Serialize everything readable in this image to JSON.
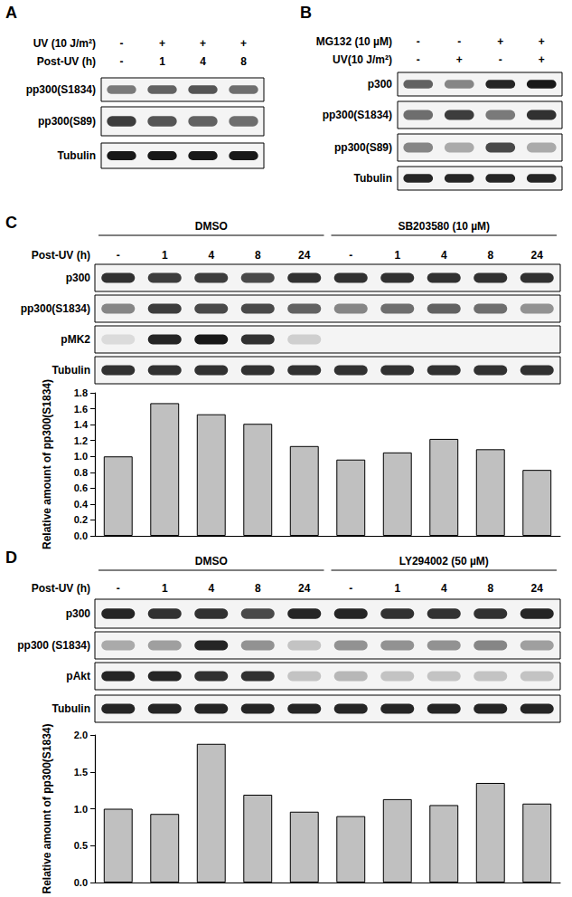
{
  "panels": [
    {
      "label": "A",
      "conditions": [
        {
          "name": "UV (10 J/m²)",
          "values": [
            "-",
            "+",
            "+",
            "+"
          ]
        },
        {
          "name": "Post-UV (h)",
          "values": [
            "-",
            "1",
            "4",
            "8"
          ]
        }
      ],
      "blots": [
        {
          "name": "pp300(S1834)",
          "intensity": [
            0.5,
            0.6,
            0.65,
            0.55
          ]
        },
        {
          "name": "pp300(S89)",
          "intensity": [
            0.75,
            0.65,
            0.6,
            0.55
          ]
        },
        {
          "name": "Tubulin",
          "intensity": [
            0.9,
            0.9,
            0.9,
            0.9
          ]
        }
      ]
    },
    {
      "label": "B",
      "conditions": [
        {
          "name": "MG132 (10 µM)",
          "values": [
            "-",
            "-",
            "+",
            "+"
          ]
        },
        {
          "name": "UV(10 J/m²)",
          "values": [
            "-",
            "+",
            "-",
            "+"
          ]
        }
      ],
      "blots": [
        {
          "name": "p300",
          "intensity": [
            0.6,
            0.45,
            0.85,
            0.9
          ]
        },
        {
          "name": "pp300(S1834)",
          "intensity": [
            0.55,
            0.75,
            0.5,
            0.8
          ]
        },
        {
          "name": "pp300(S89)",
          "intensity": [
            0.45,
            0.3,
            0.7,
            0.3
          ]
        },
        {
          "name": "Tubulin",
          "intensity": [
            0.85,
            0.85,
            0.85,
            0.85
          ]
        }
      ]
    },
    {
      "label": "C",
      "groups": [
        {
          "name": "DMSO",
          "lanes": 5
        },
        {
          "name": "SB203580 (10 µM)",
          "lanes": 5
        }
      ],
      "conditions": [
        {
          "name": "Post-UV (h)",
          "values": [
            "-",
            "1",
            "4",
            "8",
            "24",
            "-",
            "1",
            "4",
            "8",
            "24"
          ]
        }
      ],
      "blots": [
        {
          "name": "p300",
          "intensity": [
            0.8,
            0.75,
            0.75,
            0.7,
            0.8,
            0.8,
            0.8,
            0.8,
            0.8,
            0.8
          ]
        },
        {
          "name": "pp300(S1834)",
          "intensity": [
            0.45,
            0.75,
            0.7,
            0.7,
            0.6,
            0.45,
            0.55,
            0.6,
            0.55,
            0.4
          ]
        },
        {
          "name": "pMK2",
          "intensity": [
            0.1,
            0.85,
            0.9,
            0.8,
            0.15,
            0,
            0,
            0,
            0,
            0
          ]
        },
        {
          "name": "Tubulin",
          "intensity": [
            0.8,
            0.8,
            0.8,
            0.8,
            0.8,
            0.8,
            0.8,
            0.8,
            0.8,
            0.8
          ]
        }
      ]
    },
    {
      "label": "D",
      "groups": [
        {
          "name": "DMSO",
          "lanes": 5
        },
        {
          "name": "LY294002 (50 µM)",
          "lanes": 5
        }
      ],
      "conditions": [
        {
          "name": "Post-UV (h)",
          "values": [
            "-",
            "1",
            "4",
            "8",
            "24",
            "-",
            "1",
            "4",
            "8",
            "24"
          ]
        }
      ],
      "blots": [
        {
          "name": "p300",
          "intensity": [
            0.85,
            0.8,
            0.8,
            0.7,
            0.85,
            0.85,
            0.8,
            0.8,
            0.8,
            0.85
          ]
        },
        {
          "name": "pp300 (S1834)",
          "intensity": [
            0.3,
            0.35,
            0.85,
            0.4,
            0.2,
            0.4,
            0.4,
            0.4,
            0.45,
            0.35
          ]
        },
        {
          "name": "pAkt",
          "intensity": [
            0.85,
            0.85,
            0.8,
            0.8,
            0.2,
            0.25,
            0.2,
            0.2,
            0.2,
            0.2
          ]
        },
        {
          "name": "Tubulin",
          "intensity": [
            0.85,
            0.85,
            0.85,
            0.85,
            0.85,
            0.85,
            0.85,
            0.85,
            0.85,
            0.85
          ]
        }
      ]
    }
  ],
  "chart_data": [
    {
      "type": "bar",
      "y_label": "Relative amount of pp300(S1834)",
      "categories": [
        null,
        null,
        null,
        null,
        null,
        null,
        null,
        null,
        null,
        null
      ],
      "values": [
        1.0,
        1.67,
        1.53,
        1.41,
        1.13,
        0.96,
        1.05,
        1.22,
        1.09,
        0.83
      ],
      "color": "#c0c0c0",
      "ylim": [
        0,
        1.8
      ],
      "yticks": [
        {
          "value": 0,
          "label": "0.0"
        },
        {
          "value": 0.2,
          "label": "0.2"
        },
        {
          "value": 0.4,
          "label": "0.4"
        },
        {
          "value": 0.6,
          "label": "0.6"
        },
        {
          "value": 0.8,
          "label": "0.8"
        },
        {
          "value": 1.0,
          "label": "1.0"
        },
        {
          "value": 1.2,
          "label": "1.2"
        },
        {
          "value": 1.4,
          "label": "1.4"
        },
        {
          "value": 1.6,
          "label": "1.6"
        },
        {
          "value": 1.8,
          "label": "1.8"
        }
      ],
      "grid": false,
      "tick_labels": "y"
    },
    {
      "type": "bar",
      "y_label": "Relative amount of pp300(S1834)",
      "categories": [
        null,
        null,
        null,
        null,
        null,
        null,
        null,
        null,
        null,
        null
      ],
      "values": [
        1.0,
        0.93,
        1.88,
        1.19,
        0.96,
        0.9,
        1.13,
        1.05,
        1.35,
        1.07
      ],
      "color": "#c0c0c0",
      "ylim": [
        0,
        2.0
      ],
      "yticks": [
        {
          "value": 0,
          "label": "0.0"
        },
        {
          "value": 0.5,
          "label": "0.5"
        },
        {
          "value": 1.0,
          "label": "1.0"
        },
        {
          "value": 1.5,
          "label": "1.5"
        },
        {
          "value": 2.0,
          "label": "2.0"
        }
      ],
      "grid": false,
      "tick_labels": "y"
    }
  ]
}
